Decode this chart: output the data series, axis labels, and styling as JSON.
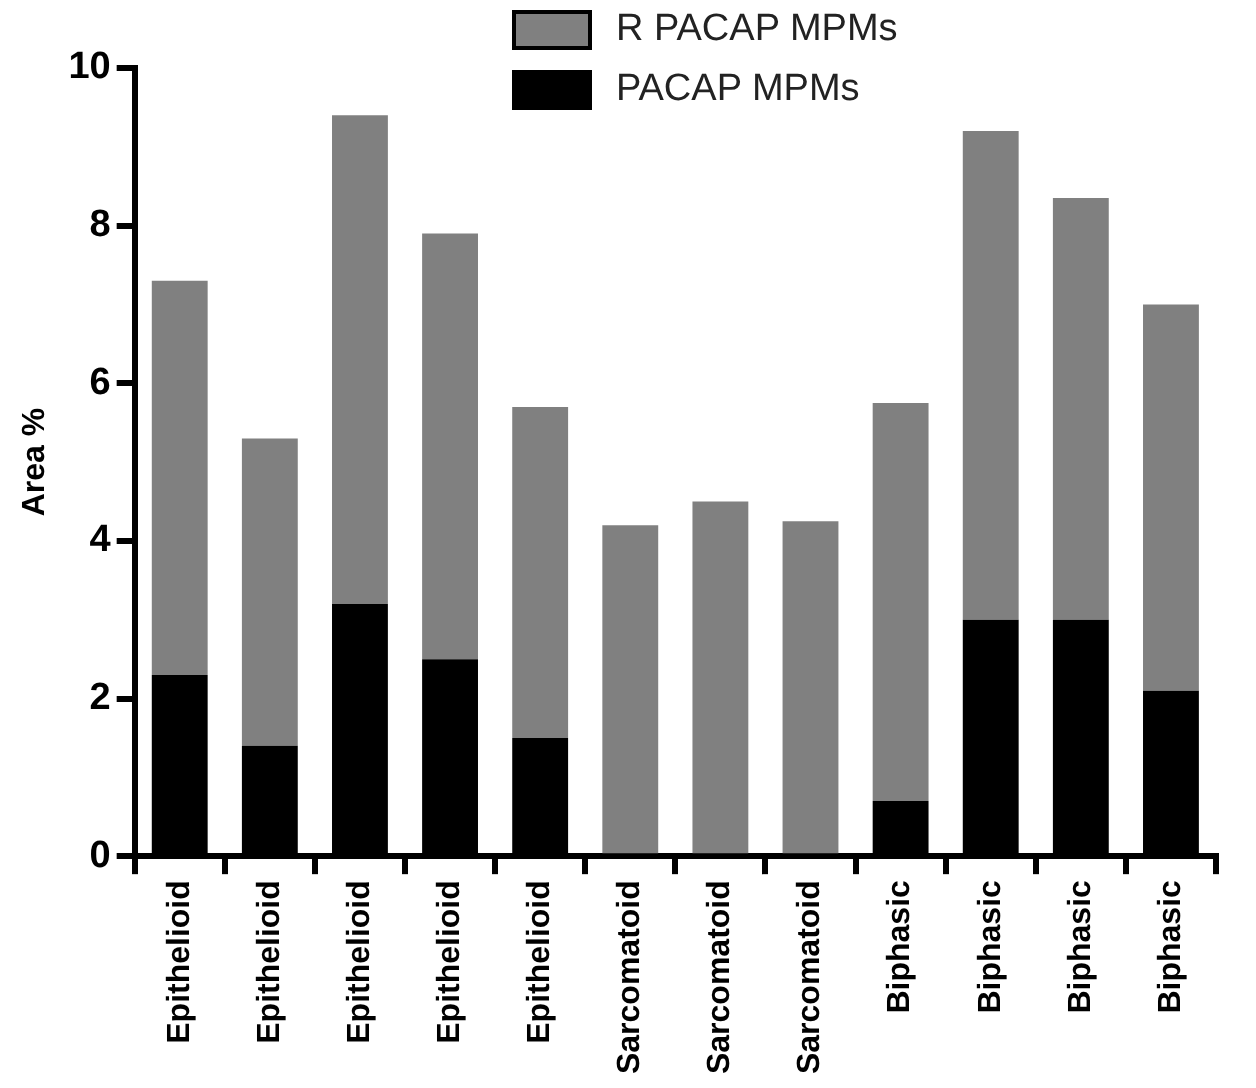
{
  "chart_data": {
    "type": "bar",
    "stacked": true,
    "ylabel": "Area %",
    "categories": [
      "Epithelioid",
      "Epithelioid",
      "Epithelioid",
      "Epithelioid",
      "Epithelioid",
      "Sarcomatoid",
      "Sarcomatoid",
      "Sarcomatoid",
      "Biphasic",
      "Biphasic",
      "Biphasic",
      "Biphasic"
    ],
    "series": [
      {
        "name": "PACAP MPMs",
        "color": "#000000",
        "values": [
          2.3,
          1.4,
          3.2,
          2.5,
          1.5,
          0,
          0,
          0,
          0.7,
          3.0,
          3.0,
          2.1
        ]
      },
      {
        "name": "R PACAP MPMs",
        "color": "#808080",
        "values": [
          5.0,
          3.9,
          6.2,
          5.4,
          4.2,
          4.2,
          4.5,
          4.25,
          5.05,
          6.2,
          5.35,
          4.9
        ]
      }
    ],
    "ylim": [
      0,
      10
    ],
    "yticks": [
      0,
      2,
      4,
      6,
      8,
      10
    ],
    "grid": false,
    "legend": "top right"
  }
}
